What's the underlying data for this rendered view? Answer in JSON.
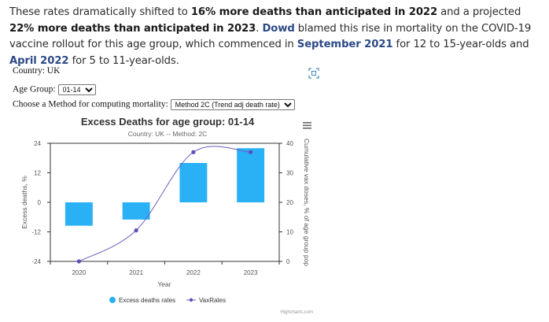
{
  "article": {
    "segments": [
      {
        "text": "These rates dramatically shifted to ",
        "style": "plain"
      },
      {
        "text": "16% more deaths than anticipated in 2022",
        "style": "bold"
      },
      {
        "text": " and a projected ",
        "style": "plain"
      },
      {
        "text": "22% more deaths than anticipated in 2023",
        "style": "bold"
      },
      {
        "text": ". ",
        "style": "plain"
      },
      {
        "text": "Dowd",
        "style": "link"
      },
      {
        "text": " blamed this rise in mortality on the COVID-19 vaccine rollout for this age group, which commenced in ",
        "style": "plain"
      },
      {
        "text": "September 2021",
        "style": "link"
      },
      {
        "text": " for 12 to 15-year-olds and ",
        "style": "plain"
      },
      {
        "text": "April 2022",
        "style": "link"
      },
      {
        "text": " for 5 to 11-year-olds.",
        "style": "plain"
      }
    ]
  },
  "form": {
    "country_label": "Country: UK",
    "age_group_label": "Age Group:",
    "age_group_value": "01-14",
    "method_label": "Choose a Method for computing mortality:",
    "method_value": "Method 2C (Trend adj death rate)"
  },
  "icons": {
    "expand": "fullscreen-icon",
    "menu": "hamburger-menu-icon",
    "accent": "#7cb5ec"
  },
  "chart_data": {
    "type": "bar",
    "title": "Excess Deaths for age group: 01-14",
    "subtitle": "Country: UK -- Method: 2C",
    "xlabel": "Year",
    "ylabel": "Excess deaths, %",
    "y2label": "Cumulative vax doses, % of age group pop",
    "categories": [
      "2020",
      "2021",
      "2022",
      "2023"
    ],
    "ylim": [
      -24,
      24
    ],
    "yticks": [
      -24,
      -12,
      0,
      12,
      24
    ],
    "y2lim": [
      0,
      40
    ],
    "y2ticks": [
      0,
      10,
      20,
      30,
      40
    ],
    "grid": false,
    "legend_placement": "bottom-center",
    "credits": "Highcharts.com",
    "series": [
      {
        "name": "Excess deaths rates",
        "type": "bar",
        "axis": "left",
        "color": "#2ab0f5",
        "values": [
          -9.5,
          -7,
          16,
          22
        ]
      },
      {
        "name": "VaxRates",
        "type": "line",
        "axis": "right",
        "color": "#6a5fc1",
        "values": [
          0,
          10.5,
          37,
          37
        ]
      }
    ]
  }
}
